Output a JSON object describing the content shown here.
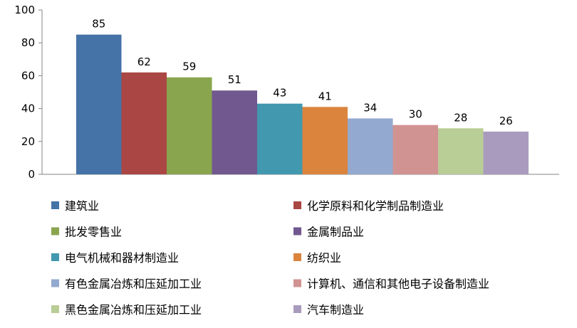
{
  "chart_data": {
    "type": "bar",
    "title": "",
    "xlabel": "",
    "ylabel": "",
    "ylim": [
      0,
      100
    ],
    "yticks": [
      0,
      20,
      40,
      60,
      80,
      100
    ],
    "categories": [
      "建筑业",
      "化学原料和化学制品制造业",
      "批发零售业",
      "金属制品业",
      "电气机械和器材制造业",
      "纺织业",
      "有色金属冶炼和压延加工业",
      "计算机、通信和其他电子设备制造业",
      "黑色金属冶炼和压延加工业",
      "汽车制造业"
    ],
    "values": [
      85,
      62,
      59,
      51,
      43,
      41,
      34,
      30,
      28,
      26
    ],
    "colors": [
      "#4572A7",
      "#AA4643",
      "#89A54E",
      "#71588F",
      "#4198AF",
      "#DB843D",
      "#93A9CF",
      "#D19392",
      "#B9CD96",
      "#A99BBD"
    ],
    "grid": false,
    "legend_position": "bottom",
    "legend_columns": 2
  }
}
